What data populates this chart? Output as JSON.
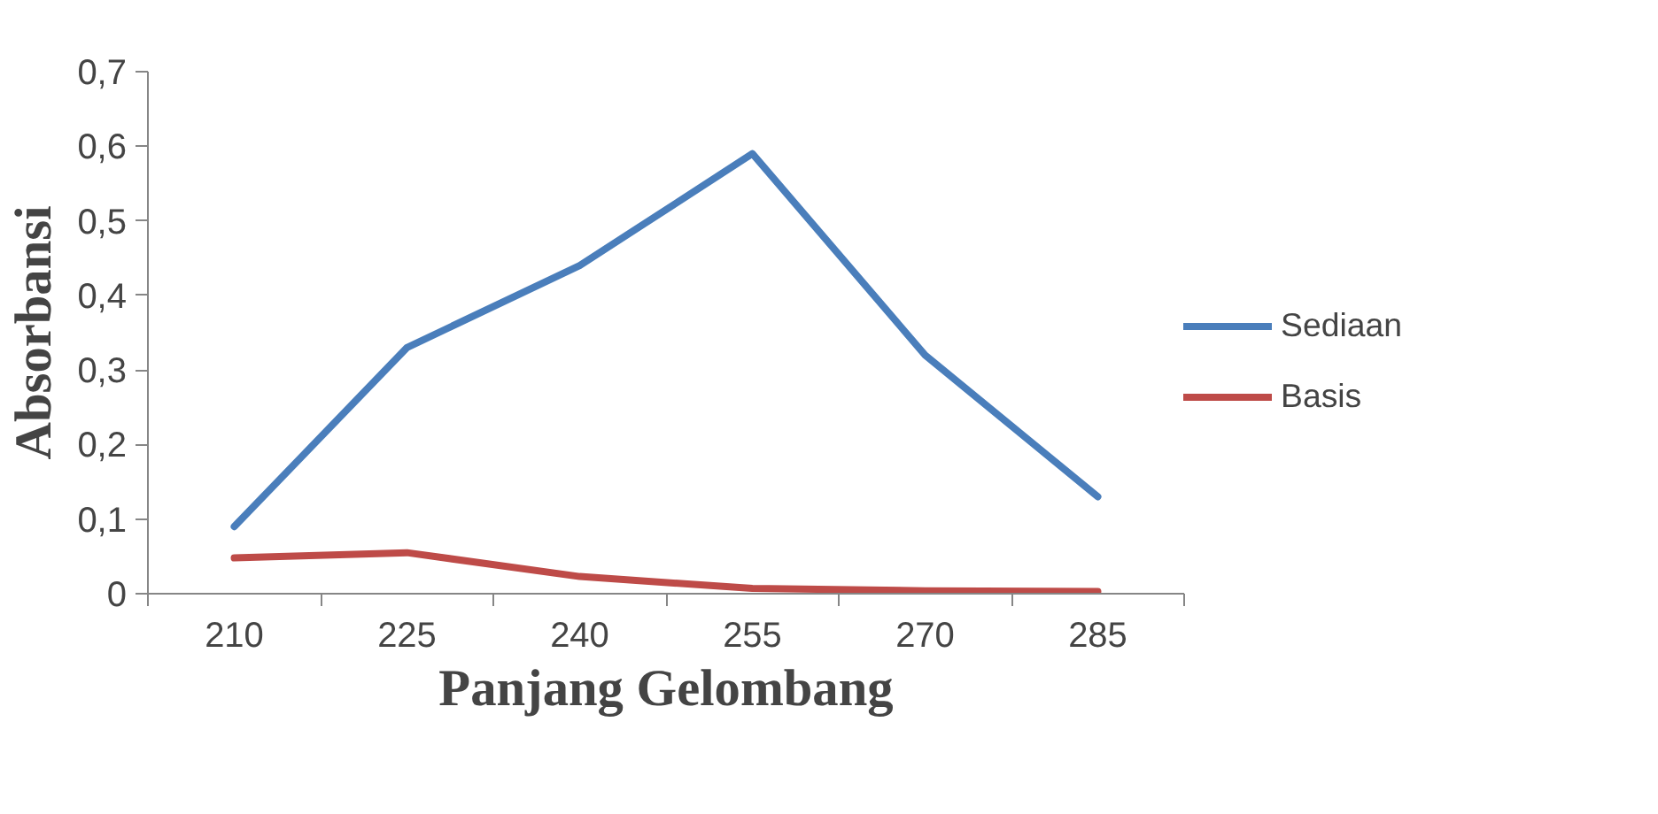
{
  "chart_data": {
    "type": "line",
    "xlabel": "Panjang Gelombang",
    "ylabel": "Absorbansi",
    "categories": [
      "210",
      "225",
      "240",
      "255",
      "270",
      "285"
    ],
    "series": [
      {
        "name": "Sediaan",
        "color": "#4a7ebb",
        "values": [
          0.09,
          0.33,
          0.44,
          0.59,
          0.32,
          0.13
        ]
      },
      {
        "name": "Basis",
        "color": "#be4b48",
        "values": [
          0.048,
          0.055,
          0.023,
          0.007,
          0.004,
          0.003
        ]
      }
    ],
    "ylim": [
      0,
      0.7
    ],
    "yticks": [
      {
        "value": 0,
        "label": "0"
      },
      {
        "value": 0.1,
        "label": "0,1"
      },
      {
        "value": 0.2,
        "label": "0,2"
      },
      {
        "value": 0.3,
        "label": "0,3"
      },
      {
        "value": 0.4,
        "label": "0,4"
      },
      {
        "value": 0.5,
        "label": "0,5"
      },
      {
        "value": 0.6,
        "label": "0,6"
      },
      {
        "value": 0.7,
        "label": "0,7"
      }
    ],
    "grid": false,
    "legend": "right",
    "marker": "none",
    "line_style": "solid"
  }
}
